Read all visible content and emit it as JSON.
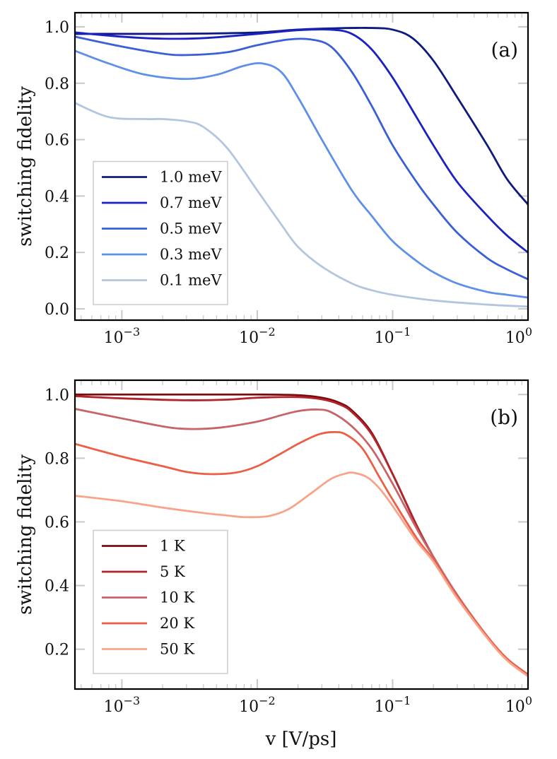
{
  "chart_data": [
    {
      "type": "line",
      "panel_label": "(a)",
      "xlabel": "",
      "ylabel": "switching fidelity",
      "xscale": "log",
      "xlim": [
        0.00045,
        1.0
      ],
      "ylim": [
        -0.04,
        1.05
      ],
      "xticks": [
        0.001,
        0.01,
        0.1,
        1
      ],
      "xtick_labels": [
        {
          "base": "10",
          "exp": "−3"
        },
        {
          "base": "10",
          "exp": "−2"
        },
        {
          "base": "10",
          "exp": "−1"
        },
        {
          "base": "10",
          "exp": "0"
        }
      ],
      "yticks": [
        0.0,
        0.2,
        0.4,
        0.6,
        0.8,
        1.0
      ],
      "ytick_labels": [
        "0.0",
        "0.2",
        "0.4",
        "0.6",
        "0.8",
        "1.0"
      ],
      "legend_position": "lower-left",
      "series": [
        {
          "name": "1.0 meV",
          "color": "#0d1a7e",
          "x": [
            0.00045,
            0.001,
            0.002,
            0.004,
            0.01,
            0.02,
            0.04,
            0.07,
            0.1,
            0.14,
            0.2,
            0.3,
            0.5,
            0.7,
            1.0
          ],
          "y": [
            0.975,
            0.975,
            0.975,
            0.976,
            0.98,
            0.99,
            0.995,
            0.996,
            0.99,
            0.96,
            0.88,
            0.75,
            0.58,
            0.46,
            0.37
          ]
        },
        {
          "name": "0.7 meV",
          "color": "#1a22c2",
          "x": [
            0.00045,
            0.001,
            0.002,
            0.004,
            0.01,
            0.02,
            0.035,
            0.05,
            0.07,
            0.1,
            0.15,
            0.2,
            0.3,
            0.5,
            0.7,
            1.0
          ],
          "y": [
            0.98,
            0.965,
            0.958,
            0.96,
            0.975,
            0.988,
            0.99,
            0.975,
            0.92,
            0.82,
            0.68,
            0.58,
            0.45,
            0.33,
            0.26,
            0.2
          ]
        },
        {
          "name": "0.5 meV",
          "color": "#3a5fd8",
          "x": [
            0.00045,
            0.001,
            0.002,
            0.003,
            0.006,
            0.01,
            0.017,
            0.025,
            0.035,
            0.05,
            0.07,
            0.1,
            0.15,
            0.2,
            0.3,
            0.5,
            0.7,
            1.0
          ],
          "y": [
            0.965,
            0.93,
            0.905,
            0.9,
            0.91,
            0.935,
            0.955,
            0.955,
            0.93,
            0.84,
            0.72,
            0.58,
            0.45,
            0.37,
            0.27,
            0.18,
            0.14,
            0.105
          ]
        },
        {
          "name": "0.3 meV",
          "color": "#5e90e8",
          "x": [
            0.00045,
            0.0008,
            0.0015,
            0.003,
            0.005,
            0.008,
            0.011,
            0.015,
            0.02,
            0.03,
            0.05,
            0.07,
            0.1,
            0.15,
            0.2,
            0.3,
            0.5,
            0.7,
            1.0
          ],
          "y": [
            0.915,
            0.87,
            0.83,
            0.815,
            0.83,
            0.862,
            0.87,
            0.84,
            0.75,
            0.6,
            0.42,
            0.33,
            0.24,
            0.17,
            0.13,
            0.09,
            0.06,
            0.05,
            0.04
          ]
        },
        {
          "name": "0.1 meV",
          "color": "#b3c6de",
          "x": [
            0.00045,
            0.0008,
            0.0015,
            0.002,
            0.003,
            0.004,
            0.006,
            0.01,
            0.015,
            0.02,
            0.03,
            0.05,
            0.07,
            0.1,
            0.2,
            0.5,
            1.0
          ],
          "y": [
            0.73,
            0.68,
            0.673,
            0.673,
            0.665,
            0.645,
            0.57,
            0.42,
            0.3,
            0.22,
            0.15,
            0.09,
            0.066,
            0.05,
            0.03,
            0.015,
            0.008
          ]
        }
      ]
    },
    {
      "type": "line",
      "panel_label": "(b)",
      "xlabel": "v [V/ps]",
      "ylabel": "switching fidelity",
      "xscale": "log",
      "xlim": [
        0.00045,
        1.0
      ],
      "ylim": [
        0.075,
        1.045
      ],
      "xticks": [
        0.001,
        0.01,
        0.1,
        1
      ],
      "xtick_labels": [
        {
          "base": "10",
          "exp": "−3"
        },
        {
          "base": "10",
          "exp": "−2"
        },
        {
          "base": "10",
          "exp": "−1"
        },
        {
          "base": "10",
          "exp": "0"
        }
      ],
      "yticks": [
        0.2,
        0.4,
        0.6,
        0.8,
        1.0
      ],
      "ytick_labels": [
        "0.2",
        "0.4",
        "0.6",
        "0.8",
        "1.0"
      ],
      "legend_position": "lower-left",
      "series": [
        {
          "name": "1  K",
          "color": "#7a0a10",
          "x": [
            0.00045,
            0.001,
            0.003,
            0.01,
            0.02,
            0.03,
            0.04,
            0.05,
            0.07,
            0.1,
            0.15,
            0.2,
            0.3,
            0.5,
            0.7,
            1.0
          ],
          "y": [
            1.0,
            1.0,
            1.0,
            1.0,
            0.998,
            0.99,
            0.975,
            0.95,
            0.88,
            0.75,
            0.59,
            0.49,
            0.37,
            0.24,
            0.17,
            0.12
          ]
        },
        {
          "name": "5  K",
          "color": "#b3232a",
          "x": [
            0.00045,
            0.001,
            0.003,
            0.006,
            0.01,
            0.02,
            0.03,
            0.04,
            0.05,
            0.07,
            0.1,
            0.15,
            0.2,
            0.3,
            0.5,
            0.7,
            1.0
          ],
          "y": [
            0.995,
            0.988,
            0.982,
            0.984,
            0.99,
            0.992,
            0.985,
            0.97,
            0.945,
            0.875,
            0.75,
            0.59,
            0.49,
            0.37,
            0.24,
            0.17,
            0.12
          ]
        },
        {
          "name": "10  K",
          "color": "#c86468",
          "x": [
            0.00045,
            0.001,
            0.002,
            0.003,
            0.005,
            0.01,
            0.015,
            0.02,
            0.027,
            0.035,
            0.05,
            0.07,
            0.1,
            0.15,
            0.2,
            0.3,
            0.5,
            0.7,
            1.0
          ],
          "y": [
            0.955,
            0.925,
            0.9,
            0.892,
            0.895,
            0.915,
            0.935,
            0.948,
            0.953,
            0.945,
            0.9,
            0.83,
            0.72,
            0.58,
            0.49,
            0.37,
            0.24,
            0.17,
            0.12
          ]
        },
        {
          "name": "20  K",
          "color": "#ec5e46",
          "x": [
            0.00045,
            0.001,
            0.002,
            0.003,
            0.0045,
            0.007,
            0.01,
            0.015,
            0.02,
            0.028,
            0.036,
            0.045,
            0.06,
            0.08,
            0.1,
            0.15,
            0.2,
            0.3,
            0.5,
            0.7,
            1.0
          ],
          "y": [
            0.845,
            0.805,
            0.775,
            0.757,
            0.75,
            0.755,
            0.775,
            0.815,
            0.845,
            0.874,
            0.882,
            0.875,
            0.83,
            0.74,
            0.67,
            0.55,
            0.48,
            0.365,
            0.24,
            0.17,
            0.118
          ]
        },
        {
          "name": "50  K",
          "color": "#f8a48a",
          "x": [
            0.00045,
            0.001,
            0.002,
            0.004,
            0.006,
            0.008,
            0.012,
            0.017,
            0.025,
            0.035,
            0.045,
            0.052,
            0.065,
            0.08,
            0.1,
            0.15,
            0.2,
            0.3,
            0.5,
            0.7,
            1.0
          ],
          "y": [
            0.682,
            0.665,
            0.645,
            0.628,
            0.62,
            0.615,
            0.618,
            0.64,
            0.69,
            0.735,
            0.752,
            0.754,
            0.74,
            0.705,
            0.65,
            0.54,
            0.475,
            0.36,
            0.235,
            0.165,
            0.115
          ]
        }
      ]
    }
  ]
}
